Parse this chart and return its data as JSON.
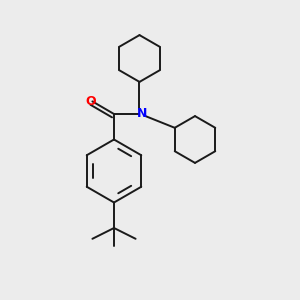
{
  "background_color": "#ececec",
  "bond_color": "#1a1a1a",
  "N_color": "#0000ff",
  "O_color": "#ff0000",
  "line_width": 1.4,
  "fig_size": [
    3.0,
    3.0
  ],
  "dpi": 100
}
